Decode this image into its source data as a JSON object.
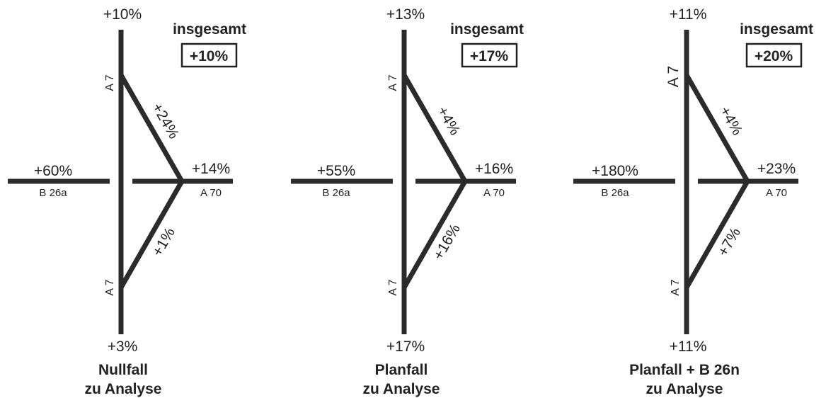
{
  "colors": {
    "road": "#2b2b2b",
    "text": "#222222",
    "background": "#ffffff"
  },
  "road_labels": {
    "a7": "A 7",
    "b26a": "B 26a",
    "a70": "A 70"
  },
  "overall_label": "insgesamt",
  "panels": [
    {
      "a7_north": "+10%",
      "a7_south": "+3%",
      "b26a": "+60%",
      "a70": "+14%",
      "ramp_upper": "+24%",
      "ramp_lower": "+1%",
      "total": "+10%",
      "caption_line1": "Nullfall",
      "caption_line2": "zu Analyse"
    },
    {
      "a7_north": "+13%",
      "a7_south": "+17%",
      "b26a": "+55%",
      "a70": "+16%",
      "ramp_upper": "+4%",
      "ramp_lower": "+16%",
      "total": "+17%",
      "caption_line1": "Planfall",
      "caption_line2": "zu Analyse"
    },
    {
      "a7_north": "+11%",
      "a7_south": "+11%",
      "b26a": "+180%",
      "a70": "+23%",
      "ramp_upper": "+4%",
      "ramp_lower": "+7%",
      "total": "+20%",
      "caption_line1": "Planfall + B 26n",
      "caption_line2": "zu Analyse"
    }
  ]
}
